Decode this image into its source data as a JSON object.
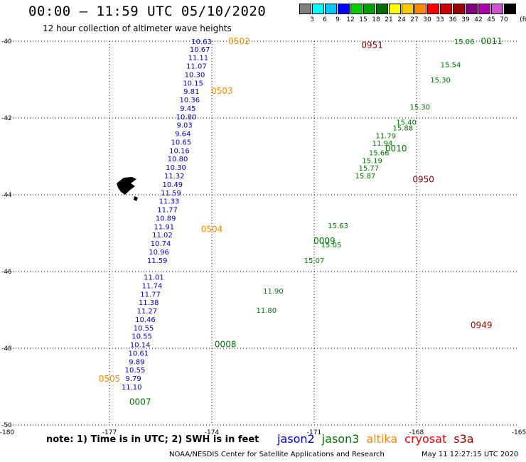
{
  "title": "00:00 – 11:59 UTC 05/10/2020",
  "subtitle": "12 hour collection of altimeter wave heights",
  "scale": {
    "unit": "(ft)",
    "colors": [
      "#808080",
      "#00ffff",
      "#00c8ff",
      "#0000ff",
      "#00cc00",
      "#00a000",
      "#007000",
      "#ffff00",
      "#ffcc00",
      "#ff8800",
      "#ff0000",
      "#cc0000",
      "#990000",
      "#800080",
      "#aa00aa",
      "#cc55cc",
      "#000000"
    ],
    "labels": [
      "3",
      "6",
      "9",
      "12",
      "15",
      "18",
      "21",
      "24",
      "27",
      "30",
      "33",
      "36",
      "39",
      "42",
      "45",
      "70"
    ]
  },
  "axes": {
    "lat_labels": [
      "-40",
      "-42",
      "-44",
      "-46",
      "-48",
      "-50"
    ],
    "lon_labels": [
      "-180",
      "-177",
      "-174",
      "-171",
      "-168",
      "-165"
    ]
  },
  "tracks": [
    {
      "name": "jason2",
      "color": "#0000cc",
      "points": [
        {
          "t": "10.63",
          "lon": -174.3,
          "lat": -40.0
        },
        {
          "t": "10.67",
          "lon": -174.35,
          "lat": -40.2
        },
        {
          "t": "11.11",
          "lon": -174.4,
          "lat": -40.42
        },
        {
          "t": "11.07",
          "lon": -174.45,
          "lat": -40.64
        },
        {
          "t": "10.30",
          "lon": -174.5,
          "lat": -40.86
        },
        {
          "t": "10.15",
          "lon": -174.55,
          "lat": -41.08
        },
        {
          "t": "9.81",
          "lon": -174.6,
          "lat": -41.3
        },
        {
          "t": "10.36",
          "lon": -174.65,
          "lat": -41.52
        },
        {
          "t": "9.45",
          "lon": -174.7,
          "lat": -41.74
        },
        {
          "t": "10.80",
          "lon": -174.75,
          "lat": -41.96
        },
        {
          "t": "9.03",
          "lon": -174.8,
          "lat": -42.18
        },
        {
          "t": "9.64",
          "lon": -174.85,
          "lat": -42.4
        },
        {
          "t": "10.65",
          "lon": -174.9,
          "lat": -42.62
        },
        {
          "t": "10.16",
          "lon": -174.95,
          "lat": -42.84
        },
        {
          "t": "10.80",
          "lon": -175.0,
          "lat": -43.06
        },
        {
          "t": "10.30",
          "lon": -175.05,
          "lat": -43.28
        },
        {
          "t": "11.32",
          "lon": -175.1,
          "lat": -43.5
        },
        {
          "t": "10.49",
          "lon": -175.15,
          "lat": -43.72
        },
        {
          "t": "11.59",
          "lon": -175.2,
          "lat": -43.94
        },
        {
          "t": "11.33",
          "lon": -175.25,
          "lat": -44.16
        },
        {
          "t": "11.77",
          "lon": -175.3,
          "lat": -44.38
        },
        {
          "t": "10.89",
          "lon": -175.35,
          "lat": -44.6
        },
        {
          "t": "11.91",
          "lon": -175.4,
          "lat": -44.82
        },
        {
          "t": "11.02",
          "lon": -175.45,
          "lat": -45.04
        },
        {
          "t": "10.74",
          "lon": -175.5,
          "lat": -45.26
        },
        {
          "t": "10.96",
          "lon": -175.55,
          "lat": -45.48
        },
        {
          "t": "11.59",
          "lon": -175.6,
          "lat": -45.7
        },
        {
          "t": "11.01",
          "lon": -175.7,
          "lat": -46.14
        },
        {
          "t": "11.74",
          "lon": -175.75,
          "lat": -46.36
        },
        {
          "t": "11.77",
          "lon": -175.8,
          "lat": -46.58
        },
        {
          "t": "11.38",
          "lon": -175.85,
          "lat": -46.8
        },
        {
          "t": "11.27",
          "lon": -175.9,
          "lat": -47.02
        },
        {
          "t": "10.46",
          "lon": -175.95,
          "lat": -47.24
        },
        {
          "t": "10.55",
          "lon": -176.0,
          "lat": -47.46
        },
        {
          "t": "10.55",
          "lon": -176.05,
          "lat": -47.68
        },
        {
          "t": "10.14",
          "lon": -176.1,
          "lat": -47.9
        },
        {
          "t": "10.61",
          "lon": -176.15,
          "lat": -48.12
        },
        {
          "t": "9.89",
          "lon": -176.2,
          "lat": -48.34
        },
        {
          "t": "10.55",
          "lon": -176.25,
          "lat": -48.56
        },
        {
          "t": "9.79",
          "lon": -176.3,
          "lat": -48.78
        },
        {
          "t": "11.10",
          "lon": -176.35,
          "lat": -49.0
        }
      ]
    },
    {
      "name": "jason3",
      "color": "#007700",
      "points": [
        {
          "t": "15.06",
          "lon": -166.6,
          "lat": -40.0
        },
        {
          "t": "15.54",
          "lon": -167.0,
          "lat": -40.6
        },
        {
          "t": "15.30",
          "lon": -167.3,
          "lat": -41.0
        },
        {
          "t": "15.30",
          "lon": -167.9,
          "lat": -41.7
        },
        {
          "t": "15.40",
          "lon": -168.3,
          "lat": -42.1
        },
        {
          "t": "15.88",
          "lon": -168.4,
          "lat": -42.25
        },
        {
          "t": "11.79",
          "lon": -168.9,
          "lat": -42.45
        },
        {
          "t": "11.94",
          "lon": -169.0,
          "lat": -42.65
        },
        {
          "t": "15.66",
          "lon": -169.1,
          "lat": -42.9
        },
        {
          "t": "15.19",
          "lon": -169.3,
          "lat": -43.1
        },
        {
          "t": "15.77",
          "lon": -169.4,
          "lat": -43.3
        },
        {
          "t": "15.87",
          "lon": -169.5,
          "lat": -43.5
        },
        {
          "t": "15.63",
          "lon": -170.3,
          "lat": -44.8
        },
        {
          "t": "15.05",
          "lon": -170.5,
          "lat": -45.3
        },
        {
          "t": "15.07",
          "lon": -171.0,
          "lat": -45.7
        },
        {
          "t": "11.90",
          "lon": -172.2,
          "lat": -46.5
        },
        {
          "t": "11.80",
          "lon": -172.4,
          "lat": -47.0
        }
      ]
    },
    {
      "name": "altika",
      "color": "#ff8800",
      "points": []
    },
    {
      "name": "cryosat",
      "color": "#ff0000",
      "points": []
    },
    {
      "name": "s3a",
      "color": "#990000",
      "points": []
    }
  ],
  "time_labels": [
    {
      "t": "0502",
      "color": "#ff8800",
      "lon": -173.2,
      "lat": -40.0
    },
    {
      "t": "0503",
      "color": "#ff8800",
      "lon": -173.7,
      "lat": -41.3
    },
    {
      "t": "0504",
      "color": "#ff8800",
      "lon": -174.0,
      "lat": -44.9
    },
    {
      "t": "0505",
      "color": "#ff8800",
      "lon": -177.0,
      "lat": -48.8
    },
    {
      "t": "0951",
      "color": "#990000",
      "lon": -169.3,
      "lat": -40.1
    },
    {
      "t": "0950",
      "color": "#990000",
      "lon": -167.8,
      "lat": -43.6
    },
    {
      "t": "0949",
      "color": "#990000",
      "lon": -166.1,
      "lat": -47.4
    },
    {
      "t": "0011",
      "color": "#007700",
      "lon": -165.8,
      "lat": -40.0
    },
    {
      "t": "0010",
      "color": "#007700",
      "lon": -168.6,
      "lat": -42.8
    },
    {
      "t": "0009",
      "color": "#007700",
      "lon": -170.7,
      "lat": -45.2
    },
    {
      "t": "0008",
      "color": "#007700",
      "lon": -173.6,
      "lat": -47.9
    },
    {
      "t": "0007",
      "color": "#007700",
      "lon": -176.1,
      "lat": -49.4
    }
  ],
  "note": "note: 1) Time is in UTC; 2) SWH is in feet",
  "legend": [
    {
      "name": "jason2",
      "color": "#0000cc"
    },
    {
      "name": "jason3",
      "color": "#007700"
    },
    {
      "name": "altika",
      "color": "#ff8800"
    },
    {
      "name": "cryosat",
      "color": "#ff0000"
    },
    {
      "name": "s3a",
      "color": "#990000"
    }
  ],
  "footer": {
    "credit": "NOAA/NESDIS Center for Satellite Applications and Research",
    "timestamp": "May 11 12:27:15 UTC 2020"
  }
}
